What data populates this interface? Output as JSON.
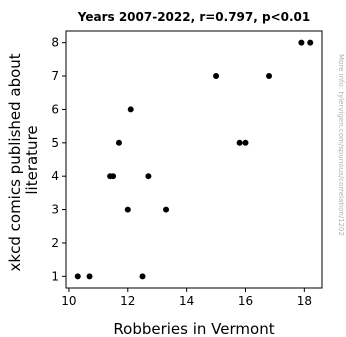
{
  "chart_data": {
    "type": "scatter",
    "title": "Years 2007-2022, r=0.797, p<0.01",
    "xlabel": "Robberies in Vermont",
    "ylabel": "xkcd comics published about literature",
    "xlim": [
      9.9,
      18.6
    ],
    "ylim": [
      0.65,
      8.35
    ],
    "x_ticks": [
      10,
      12,
      14,
      16,
      18
    ],
    "y_ticks": [
      1,
      2,
      3,
      4,
      5,
      6,
      7,
      8
    ],
    "grid": false,
    "points": [
      {
        "x": 10.3,
        "y": 1
      },
      {
        "x": 10.7,
        "y": 1
      },
      {
        "x": 11.4,
        "y": 4
      },
      {
        "x": 11.5,
        "y": 4
      },
      {
        "x": 11.7,
        "y": 5
      },
      {
        "x": 12.0,
        "y": 3
      },
      {
        "x": 12.1,
        "y": 6
      },
      {
        "x": 12.5,
        "y": 1
      },
      {
        "x": 12.7,
        "y": 4
      },
      {
        "x": 13.3,
        "y": 3
      },
      {
        "x": 15.0,
        "y": 7
      },
      {
        "x": 15.8,
        "y": 5
      },
      {
        "x": 16.0,
        "y": 5
      },
      {
        "x": 16.8,
        "y": 7
      },
      {
        "x": 17.9,
        "y": 8
      },
      {
        "x": 18.2,
        "y": 8
      }
    ]
  },
  "watermark": "More info: tylervigen.com/spurious/correlation/1202",
  "colors": {
    "point": "#000000",
    "axis": "#000000",
    "watermark": "#b0b0b0"
  }
}
